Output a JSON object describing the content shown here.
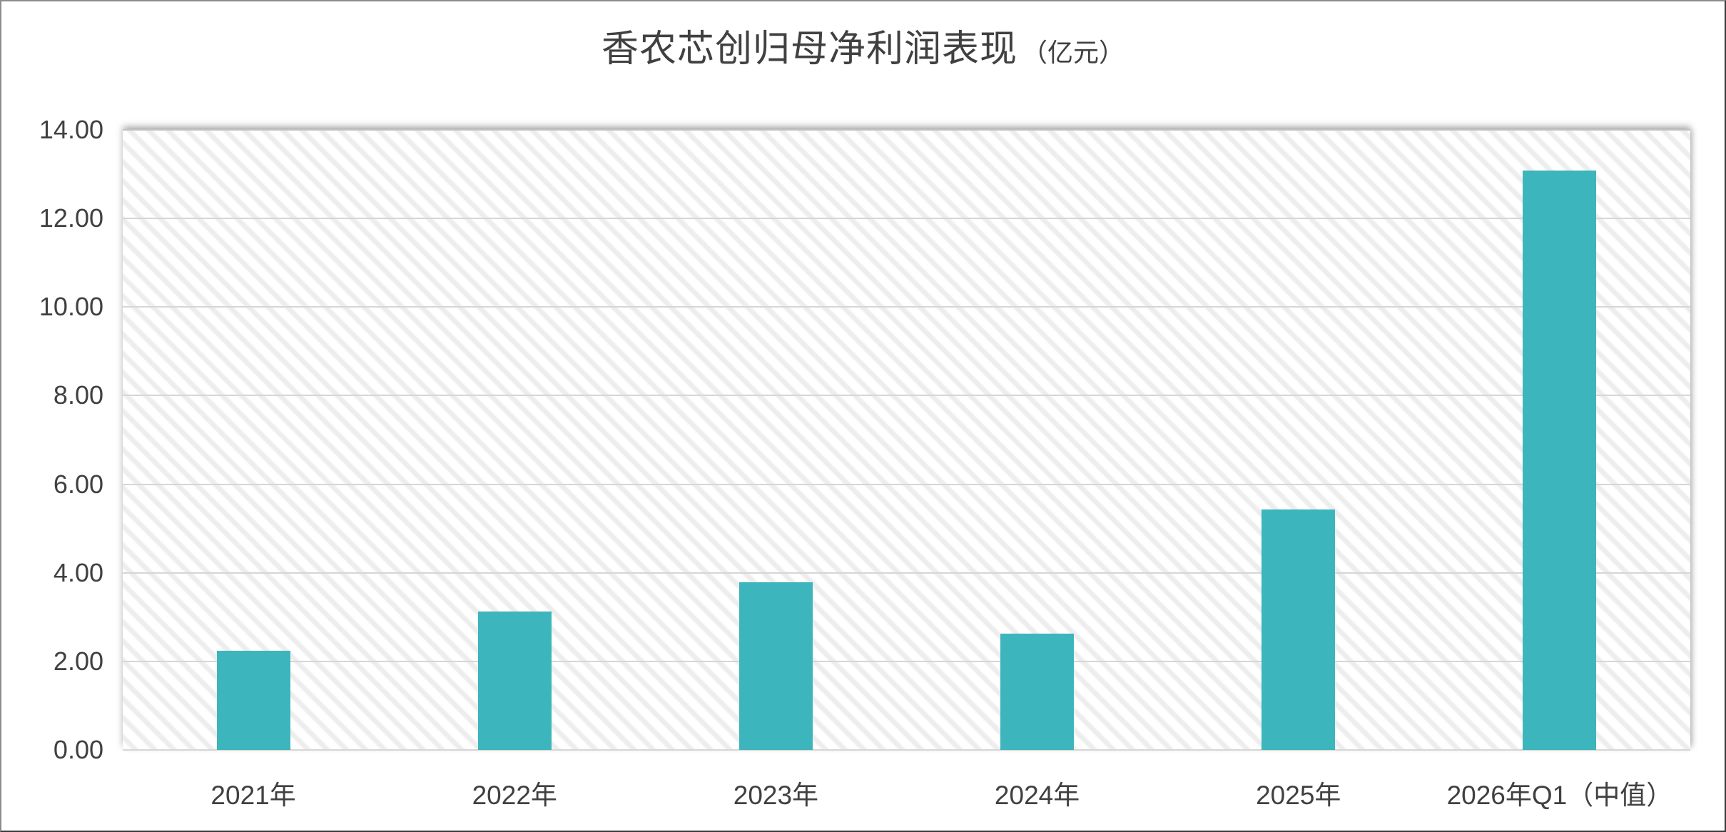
{
  "colors": {
    "bar": "#3db5bc",
    "text": "#404040",
    "gridline": "#d6d6d6",
    "hatch": "#ededed",
    "background": "#ffffff"
  },
  "chart_data": {
    "type": "bar",
    "title": "香农芯创归母净利润表现",
    "title_unit": "（亿元）",
    "categories": [
      "2021年",
      "2022年",
      "2023年",
      "2024年",
      "2025年",
      "2026年Q1（中值）"
    ],
    "values": [
      2.24,
      3.13,
      3.78,
      2.63,
      5.43,
      13.09
    ],
    "xlabel": "",
    "ylabel": "",
    "ylim": [
      0,
      14
    ],
    "ytick_step": 2,
    "ytick_labels": [
      "0.00",
      "2.00",
      "4.00",
      "6.00",
      "8.00",
      "10.00",
      "12.00",
      "14.00"
    ],
    "grid": "horizontal",
    "legend_position": "none",
    "plot_background": "diagonal-hatch"
  }
}
